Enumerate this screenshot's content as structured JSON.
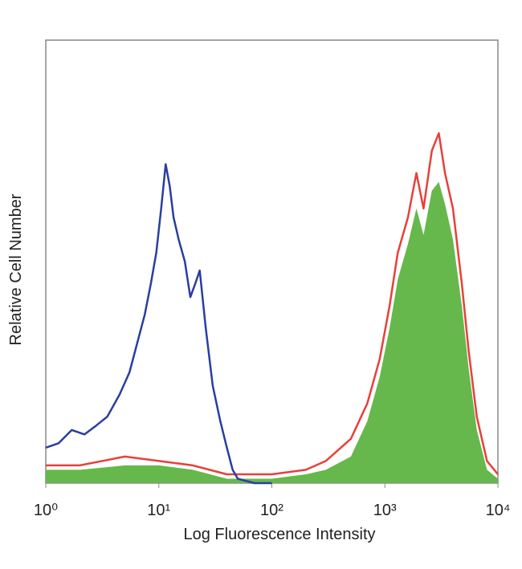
{
  "chart_data": {
    "type": "histogram-overlay",
    "x_label": "Log Fluorescence Intensity",
    "y_label": "Relative Cell Number",
    "xscale": "log",
    "xlim": [
      1,
      10000
    ],
    "ylim": [
      0,
      100
    ],
    "xticks": [
      {
        "value": 1,
        "label": "10⁰"
      },
      {
        "value": 10,
        "label": "10¹"
      },
      {
        "value": 100,
        "label": "10²"
      },
      {
        "value": 1000,
        "label": "10³"
      },
      {
        "value": 10000,
        "label": "10⁴"
      }
    ],
    "series": [
      {
        "style": "area",
        "color": "#66b84c",
        "x": [
          1,
          2,
          5,
          10,
          20,
          40,
          100,
          200,
          300,
          500,
          700,
          900,
          1100,
          1300,
          1600,
          1900,
          2200,
          2600,
          3000,
          3400,
          4000,
          4800,
          5500,
          6500,
          8000,
          10000
        ],
        "values": [
          3,
          3,
          4,
          4,
          3,
          1,
          1,
          2,
          3,
          6,
          14,
          24,
          35,
          46,
          54,
          62,
          56,
          66,
          68,
          63,
          55,
          40,
          26,
          12,
          3,
          1
        ]
      },
      {
        "style": "line",
        "color": "#e8403a",
        "x": [
          1,
          2,
          5,
          10,
          20,
          40,
          100,
          200,
          300,
          500,
          700,
          900,
          1100,
          1300,
          1600,
          1900,
          2200,
          2600,
          3000,
          3400,
          4000,
          4800,
          5500,
          6500,
          8000,
          10000
        ],
        "values": [
          4,
          4,
          6,
          5,
          4,
          2,
          2,
          3,
          5,
          10,
          18,
          28,
          40,
          52,
          60,
          70,
          62,
          75,
          79,
          70,
          62,
          45,
          30,
          15,
          5,
          2
        ]
      },
      {
        "style": "line",
        "color": "#2a3ea0",
        "x": [
          1,
          1.3,
          1.7,
          2.2,
          2.8,
          3.5,
          4.5,
          5.5,
          6.5,
          7.5,
          8.5,
          9.5,
          10.5,
          11.5,
          12.5,
          13.5,
          15,
          17,
          19,
          21,
          23,
          26,
          30,
          35,
          40,
          45,
          50,
          70,
          100
        ],
        "values": [
          8,
          9,
          12,
          11,
          13,
          15,
          20,
          25,
          32,
          38,
          45,
          52,
          62,
          72,
          67,
          60,
          55,
          50,
          42,
          45,
          48,
          35,
          22,
          14,
          8,
          3,
          1,
          0,
          0
        ]
      }
    ]
  }
}
